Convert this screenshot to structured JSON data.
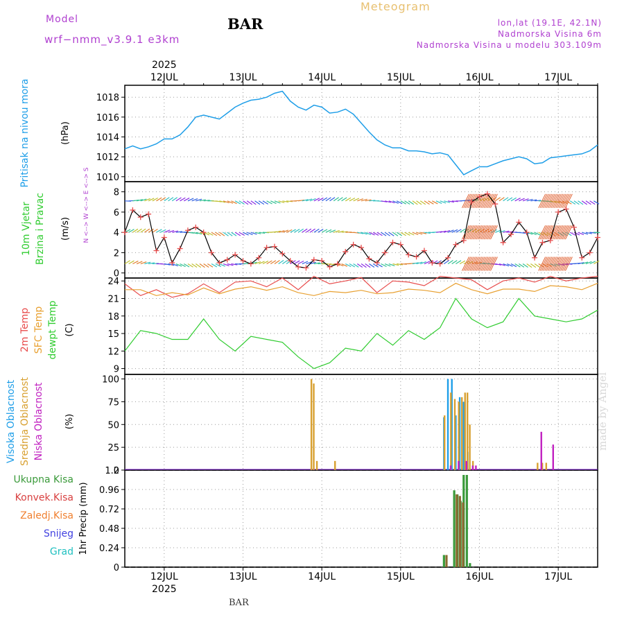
{
  "header": {
    "title": "BAR",
    "meteogram": "Meteogram",
    "model_label": "Model",
    "model_name": "wrf−nmm_v3.9.1  e3km",
    "coords": "lon,lat (19.1E, 42.1N)",
    "elevation": "Nadmorska Visina 6m",
    "model_elevation": "Nadmorska Visina u modelu 303.109m",
    "bottom_station": "BAR",
    "credit": "made by Angel"
  },
  "time_axis": {
    "year": "2025",
    "day_labels": [
      "12JUL",
      "13JUL",
      "14JUL",
      "15JUL",
      "16JUL",
      "17JUL"
    ],
    "start_day": 11.5,
    "end_day": 17.5
  },
  "colors": {
    "pressure": "#1e9ee8",
    "temp2m": "#e84c4c",
    "sfc": "#e8a030",
    "dew": "#30cc30",
    "high": "#1e9ee8",
    "mid": "#d8a030",
    "low": "#c020c0",
    "total_precip": "#3a9a3a",
    "conv_precip": "#d84040",
    "frozen_precip": "#f08030",
    "snow": "#4040e0",
    "hail": "#20c0c0"
  },
  "chart_data": [
    {
      "type": "line",
      "panel": "pressure",
      "title": "Pritisak na nivou mora",
      "ylabel": "(hPa)",
      "ylim": [
        1009.5,
        1019.2
      ],
      "yticks": [
        1010,
        1012,
        1014,
        1016,
        1018
      ],
      "series": [
        {
          "name": "Pritisak na nivou mora",
          "color_key": "pressure",
          "x": [
            11.5,
            11.6,
            11.7,
            11.8,
            11.9,
            12.0,
            12.1,
            12.2,
            12.3,
            12.4,
            12.5,
            12.6,
            12.7,
            12.8,
            12.9,
            13.0,
            13.1,
            13.2,
            13.3,
            13.4,
            13.5,
            13.6,
            13.7,
            13.8,
            13.9,
            14.0,
            14.1,
            14.2,
            14.3,
            14.4,
            14.5,
            14.6,
            14.7,
            14.8,
            14.9,
            15.0,
            15.1,
            15.2,
            15.3,
            15.4,
            15.5,
            15.6,
            15.7,
            15.8,
            15.9,
            16.0,
            16.1,
            16.2,
            16.3,
            16.4,
            16.5,
            16.6,
            16.7,
            16.8,
            16.9,
            17.0,
            17.1,
            17.2,
            17.3,
            17.4,
            17.5
          ],
          "values": [
            1012.8,
            1013.1,
            1012.8,
            1013.0,
            1013.3,
            1013.8,
            1013.8,
            1014.2,
            1015.0,
            1016.0,
            1016.2,
            1016.0,
            1015.8,
            1016.4,
            1017.0,
            1017.4,
            1017.7,
            1017.8,
            1018.0,
            1018.4,
            1018.6,
            1017.6,
            1017.0,
            1016.7,
            1017.2,
            1017.0,
            1016.4,
            1016.5,
            1016.8,
            1016.3,
            1015.4,
            1014.5,
            1013.7,
            1013.2,
            1012.9,
            1012.9,
            1012.6,
            1012.6,
            1012.5,
            1012.3,
            1012.4,
            1012.2,
            1011.2,
            1010.2,
            1010.6,
            1011.0,
            1011.0,
            1011.3,
            1011.6,
            1011.8,
            1012.0,
            1011.8,
            1011.3,
            1011.4,
            1011.9,
            1012.0,
            1012.1,
            1012.2,
            1012.3,
            1012.6,
            1013.2
          ]
        }
      ]
    },
    {
      "type": "line",
      "panel": "wind",
      "title": "10m Vjetar",
      "subtitle": "Brzina i Pravac",
      "ylabel": "(m/s)",
      "compass_label": "N <--> W <--> E <--> S",
      "ylim": [
        -0.5,
        9
      ],
      "yticks": [
        0,
        2,
        4,
        6,
        8
      ],
      "series": [
        {
          "name": "Brzina",
          "color_key": "temp2m",
          "x": [
            11.5,
            11.6,
            11.7,
            11.8,
            11.9,
            12.0,
            12.1,
            12.2,
            12.3,
            12.4,
            12.5,
            12.6,
            12.7,
            12.8,
            12.9,
            13.0,
            13.1,
            13.2,
            13.3,
            13.4,
            13.5,
            13.6,
            13.7,
            13.8,
            13.9,
            14.0,
            14.1,
            14.2,
            14.3,
            14.4,
            14.5,
            14.6,
            14.7,
            14.8,
            14.9,
            15.0,
            15.1,
            15.2,
            15.3,
            15.4,
            15.5,
            15.6,
            15.7,
            15.8,
            15.9,
            16.0,
            16.1,
            16.2,
            16.3,
            16.4,
            16.5,
            16.6,
            16.7,
            16.8,
            16.9,
            17.0,
            17.1,
            17.2,
            17.3,
            17.4,
            17.5
          ],
          "values": [
            4.0,
            6.2,
            5.5,
            5.8,
            2.2,
            3.5,
            1.0,
            2.4,
            4.2,
            4.5,
            4.0,
            2.0,
            1.0,
            1.3,
            1.8,
            1.2,
            0.9,
            1.5,
            2.5,
            2.6,
            1.9,
            1.2,
            0.6,
            0.5,
            1.3,
            1.2,
            0.6,
            0.9,
            2.1,
            2.8,
            2.5,
            1.4,
            1.0,
            2.0,
            3.0,
            2.8,
            1.8,
            1.6,
            2.2,
            1.0,
            0.9,
            1.5,
            2.8,
            3.2,
            7.0,
            7.5,
            7.8,
            6.8,
            3.0,
            3.8,
            5.0,
            4.0,
            1.5,
            3.0,
            3.2,
            6.0,
            6.3,
            4.5,
            1.5,
            2.0,
            3.5
          ]
        }
      ]
    },
    {
      "type": "line",
      "panel": "temperature",
      "title": "2m Temp",
      "legend": [
        "2m Temp",
        "SFC Temp",
        "dewpt Temp"
      ],
      "ylabel": "(C)",
      "ylim": [
        8,
        24.5
      ],
      "yticks": [
        9,
        12,
        15,
        18,
        21,
        24
      ],
      "series": [
        {
          "name": "2m Temp",
          "color_key": "temp2m",
          "x": [
            11.5,
            11.7,
            11.9,
            12.1,
            12.3,
            12.5,
            12.7,
            12.9,
            13.1,
            13.3,
            13.5,
            13.7,
            13.9,
            14.1,
            14.3,
            14.5,
            14.7,
            14.9,
            15.1,
            15.3,
            15.5,
            15.7,
            15.9,
            16.1,
            16.3,
            16.5,
            16.7,
            16.9,
            17.1,
            17.3,
            17.5
          ],
          "values": [
            23.5,
            21.5,
            22.5,
            21.2,
            21.8,
            23.5,
            22.0,
            23.8,
            24.0,
            23.0,
            24.5,
            22.5,
            24.8,
            23.5,
            24.0,
            24.6,
            22.0,
            24.0,
            23.8,
            23.2,
            24.8,
            24.5,
            24.2,
            22.5,
            24.0,
            24.5,
            23.8,
            24.8,
            24.0,
            24.5,
            24.8
          ]
        },
        {
          "name": "SFC Temp",
          "color_key": "sfc",
          "x": [
            11.5,
            11.7,
            11.9,
            12.1,
            12.3,
            12.5,
            12.7,
            12.9,
            13.1,
            13.3,
            13.5,
            13.7,
            13.9,
            14.1,
            14.3,
            14.5,
            14.7,
            14.9,
            15.1,
            15.3,
            15.5,
            15.7,
            15.9,
            16.1,
            16.3,
            16.5,
            16.7,
            16.9,
            17.1,
            17.3,
            17.5
          ],
          "values": [
            22.5,
            22.5,
            21.5,
            22.0,
            21.6,
            22.8,
            21.8,
            22.6,
            23.0,
            22.4,
            23.0,
            22.0,
            21.5,
            22.2,
            22.0,
            22.4,
            21.8,
            22.0,
            22.6,
            22.4,
            22.0,
            23.6,
            22.5,
            21.8,
            22.6,
            22.6,
            22.2,
            23.2,
            23.0,
            22.5,
            23.6
          ]
        },
        {
          "name": "dewpt Temp",
          "color_key": "dew",
          "x": [
            11.5,
            11.7,
            11.9,
            12.1,
            12.3,
            12.5,
            12.7,
            12.9,
            13.1,
            13.3,
            13.5,
            13.7,
            13.9,
            14.1,
            14.3,
            14.5,
            14.7,
            14.9,
            15.1,
            15.3,
            15.5,
            15.7,
            15.9,
            16.1,
            16.3,
            16.5,
            16.7,
            16.9,
            17.1,
            17.3,
            17.5
          ],
          "values": [
            12.0,
            15.5,
            15.0,
            14.0,
            14.0,
            17.5,
            14.0,
            12.0,
            14.5,
            14.0,
            13.5,
            11.0,
            9.0,
            10.0,
            12.5,
            12.0,
            15.0,
            13.0,
            15.5,
            14.0,
            16.0,
            21.0,
            17.5,
            16.0,
            17.0,
            21.0,
            18.0,
            17.5,
            17.0,
            17.5,
            19.0
          ]
        }
      ]
    },
    {
      "type": "bar",
      "panel": "clouds",
      "legend": [
        "Visoka Oblacnost",
        "Srednja Oblacnost",
        "Niska Oblacnost"
      ],
      "ylabel": "(%)",
      "ylim": [
        0,
        105
      ],
      "yticks": [
        0,
        25,
        50,
        75,
        100
      ],
      "series": [
        {
          "name": "Visoka Oblacnost",
          "color_key": "high",
          "x": [
            15.55,
            15.6,
            15.65,
            15.7,
            15.75,
            15.8,
            15.85
          ],
          "values": [
            58,
            100,
            100,
            60,
            80,
            75,
            20
          ]
        },
        {
          "name": "Srednja Oblacnost",
          "color_key": "mid",
          "x": [
            13.85,
            13.88,
            13.92,
            14.15,
            15.54,
            15.62,
            15.67,
            15.72,
            15.76,
            15.8,
            15.83,
            15.86,
            15.9,
            16.72,
            16.78,
            16.83
          ],
          "values": [
            100,
            95,
            10,
            10,
            60,
            85,
            78,
            75,
            80,
            85,
            85,
            50,
            10,
            8,
            8,
            8
          ]
        },
        {
          "name": "Niska Oblacnost",
          "color_key": "low",
          "x": [
            15.6,
            15.7,
            15.8,
            15.88,
            15.92,
            16.75,
            16.9
          ],
          "values": [
            5,
            10,
            10,
            5,
            5,
            42,
            28
          ]
        }
      ]
    },
    {
      "type": "bar",
      "panel": "precip",
      "legend": [
        "Ukupna Kisa",
        "Konvek.Kisa",
        "Zaledj.Kisa",
        "Snijeg",
        "Grad"
      ],
      "ylabel": "1hr Precip (mm)",
      "ylim": [
        0,
        1.2
      ],
      "yticks": [
        0,
        0.24,
        0.48,
        0.72,
        0.96,
        1.2
      ],
      "series": [
        {
          "name": "Ukupna Kisa",
          "color_key": "total_precip",
          "x": [
            15.55,
            15.68,
            15.72,
            15.76,
            15.8,
            15.84,
            15.88
          ],
          "values": [
            0.15,
            0.95,
            0.9,
            0.82,
            1.14,
            1.14,
            0.05
          ]
        },
        {
          "name": "Konvek.Kisa",
          "color_key": "conv_precip",
          "x": [
            15.56,
            15.69,
            15.73,
            15.77
          ],
          "values": [
            0.15,
            0.9,
            0.88,
            0.8
          ]
        }
      ]
    }
  ]
}
